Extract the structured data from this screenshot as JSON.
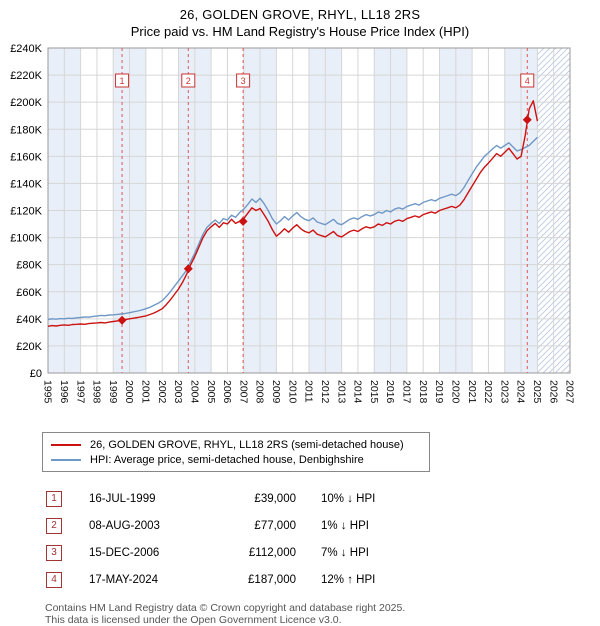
{
  "page": {
    "title": "26, GOLDEN GROVE, RHYL, LL18 2RS",
    "subtitle": "Price paid vs. HM Land Registry's House Price Index (HPI)"
  },
  "chart_data": {
    "type": "line",
    "title": "26, GOLDEN GROVE, RHYL, LL18 2RS — Price paid vs. HPI",
    "xlabel": "",
    "ylabel": "",
    "x_range": [
      1995,
      2027
    ],
    "y_range": [
      0,
      240000
    ],
    "y_tick_step": 20000,
    "y_tick_labels": [
      "£0",
      "£20K",
      "£40K",
      "£60K",
      "£80K",
      "£100K",
      "£120K",
      "£140K",
      "£160K",
      "£180K",
      "£200K",
      "£220K",
      "£240K"
    ],
    "x_tick_years": [
      1995,
      1996,
      1997,
      1998,
      1999,
      2000,
      2001,
      2002,
      2003,
      2004,
      2005,
      2006,
      2007,
      2008,
      2009,
      2010,
      2011,
      2012,
      2013,
      2014,
      2015,
      2016,
      2017,
      2018,
      2019,
      2020,
      2021,
      2022,
      2023,
      2024,
      2025,
      2026,
      2027
    ],
    "grid": true,
    "legend_position": "bottom",
    "band_color": "#e9eff8",
    "grid_color": "#d6d6d6",
    "sale_line_color": "#e05555",
    "sale_box_color": "#cc3333",
    "hatch_start": 2025,
    "x": [
      1995,
      1995.25,
      1995.5,
      1995.75,
      1996,
      1996.25,
      1996.5,
      1996.75,
      1997,
      1997.25,
      1997.5,
      1997.75,
      1998,
      1998.25,
      1998.5,
      1998.75,
      1999,
      1999.25,
      1999.5,
      1999.75,
      2000,
      2000.25,
      2000.5,
      2000.75,
      2001,
      2001.25,
      2001.5,
      2001.75,
      2002,
      2002.25,
      2002.5,
      2002.75,
      2003,
      2003.25,
      2003.5,
      2003.75,
      2004,
      2004.25,
      2004.5,
      2004.75,
      2005,
      2005.25,
      2005.5,
      2005.75,
      2006,
      2006.25,
      2006.5,
      2006.75,
      2007,
      2007.25,
      2007.5,
      2007.75,
      2008,
      2008.25,
      2008.5,
      2008.75,
      2009,
      2009.25,
      2009.5,
      2009.75,
      2010,
      2010.25,
      2010.5,
      2010.75,
      2011,
      2011.25,
      2011.5,
      2011.75,
      2012,
      2012.25,
      2012.5,
      2012.75,
      2013,
      2013.25,
      2013.5,
      2013.75,
      2014,
      2014.25,
      2014.5,
      2014.75,
      2015,
      2015.25,
      2015.5,
      2015.75,
      2016,
      2016.25,
      2016.5,
      2016.75,
      2017,
      2017.25,
      2017.5,
      2017.75,
      2018,
      2018.25,
      2018.5,
      2018.75,
      2019,
      2019.25,
      2019.5,
      2019.75,
      2020,
      2020.25,
      2020.5,
      2020.75,
      2021,
      2021.25,
      2021.5,
      2021.75,
      2022,
      2022.25,
      2022.5,
      2022.75,
      2023,
      2023.25,
      2023.5,
      2023.75,
      2024,
      2024.25,
      2024.5,
      2024.75,
      2025
    ],
    "series": [
      {
        "name": "26, GOLDEN GROVE, RHYL, LL18 2RS (semi-detached house)",
        "color": "#cc1111",
        "values": [
          34500,
          35000,
          34700,
          35200,
          35500,
          35200,
          35800,
          36000,
          36200,
          36000,
          36500,
          36800,
          37000,
          37300,
          37000,
          37600,
          38000,
          38500,
          39000,
          39500,
          40000,
          40500,
          41000,
          41600,
          42200,
          43200,
          44300,
          45800,
          47500,
          50500,
          54000,
          58000,
          62000,
          67000,
          73000,
          80000,
          86000,
          93000,
          100000,
          105000,
          108000,
          110500,
          107500,
          111000,
          110000,
          113500,
          110500,
          112000,
          114000,
          118000,
          122000,
          120000,
          121500,
          117000,
          112000,
          106000,
          101000,
          103500,
          106500,
          104000,
          107000,
          109500,
          106500,
          104500,
          103500,
          105500,
          102500,
          101500,
          100500,
          102500,
          104500,
          101500,
          100500,
          102500,
          104500,
          105500,
          104500,
          106500,
          108000,
          107000,
          108000,
          110000,
          109000,
          111000,
          110000,
          112000,
          113000,
          112000,
          114000,
          115000,
          116000,
          115000,
          117000,
          118000,
          119000,
          118000,
          120000,
          121000,
          122000,
          123000,
          122000,
          124000,
          128000,
          133000,
          138000,
          143000,
          148000,
          152000,
          155000,
          158500,
          162000,
          160000,
          163000,
          166000,
          162000,
          158000,
          160000,
          175000,
          195000,
          201000,
          186000
        ]
      },
      {
        "name": "HPI: Average price, semi-detached house, Denbighshire",
        "color": "#6f98c6",
        "values": [
          39500,
          40000,
          39700,
          40200,
          40000,
          40500,
          40300,
          40800,
          41000,
          41400,
          41200,
          41800,
          42000,
          42500,
          42300,
          42800,
          43000,
          43300,
          43600,
          44000,
          44500,
          45200,
          45800,
          46500,
          47500,
          48500,
          50000,
          51500,
          53500,
          56500,
          60000,
          64000,
          68000,
          72000,
          76000,
          82500,
          88500,
          95500,
          102500,
          107500,
          110500,
          113000,
          110500,
          114000,
          113000,
          116500,
          115000,
          118500,
          121000,
          124500,
          128500,
          126000,
          129000,
          125000,
          120000,
          114000,
          110000,
          112500,
          115500,
          113000,
          116000,
          118500,
          115500,
          113500,
          112500,
          114500,
          111500,
          110500,
          109500,
          111500,
          113500,
          110500,
          109500,
          111500,
          113500,
          114500,
          113500,
          115500,
          117000,
          116000,
          117000,
          119000,
          118000,
          120000,
          119000,
          121000,
          122000,
          121000,
          123000,
          124000,
          125000,
          124000,
          126000,
          127000,
          128000,
          127000,
          129000,
          130000,
          131000,
          132000,
          131000,
          133000,
          137000,
          142000,
          147000,
          152000,
          156000,
          160000,
          162500,
          165500,
          168000,
          166000,
          168000,
          170000,
          167000,
          164000,
          165000,
          166500,
          168000,
          171000,
          174000
        ]
      }
    ],
    "sales": [
      {
        "label": "1",
        "x": 1999.54,
        "price": 39000
      },
      {
        "label": "2",
        "x": 2003.6,
        "price": 77000
      },
      {
        "label": "3",
        "x": 2006.96,
        "price": 112000
      },
      {
        "label": "4",
        "x": 2024.38,
        "price": 187000
      }
    ]
  },
  "legend": {
    "items": [
      {
        "label": "26, GOLDEN GROVE, RHYL, LL18 2RS (semi-detached house)",
        "color": "#cc1111"
      },
      {
        "label": "HPI: Average price, semi-detached house, Denbighshire",
        "color": "#6f98c6"
      }
    ]
  },
  "transactions": [
    {
      "num": "1",
      "date": "16-JUL-1999",
      "price": "£39,000",
      "hpi_delta": "10% ↓ HPI"
    },
    {
      "num": "2",
      "date": "08-AUG-2003",
      "price": "£77,000",
      "hpi_delta": "1% ↓ HPI"
    },
    {
      "num": "3",
      "date": "15-DEC-2006",
      "price": "£112,000",
      "hpi_delta": "7% ↓ HPI"
    },
    {
      "num": "4",
      "date": "17-MAY-2024",
      "price": "£187,000",
      "hpi_delta": "12% ↑ HPI"
    }
  ],
  "footer": {
    "line1": "Contains HM Land Registry data © Crown copyright and database right 2025.",
    "line2": "This data is licensed under the Open Government Licence v3.0."
  }
}
